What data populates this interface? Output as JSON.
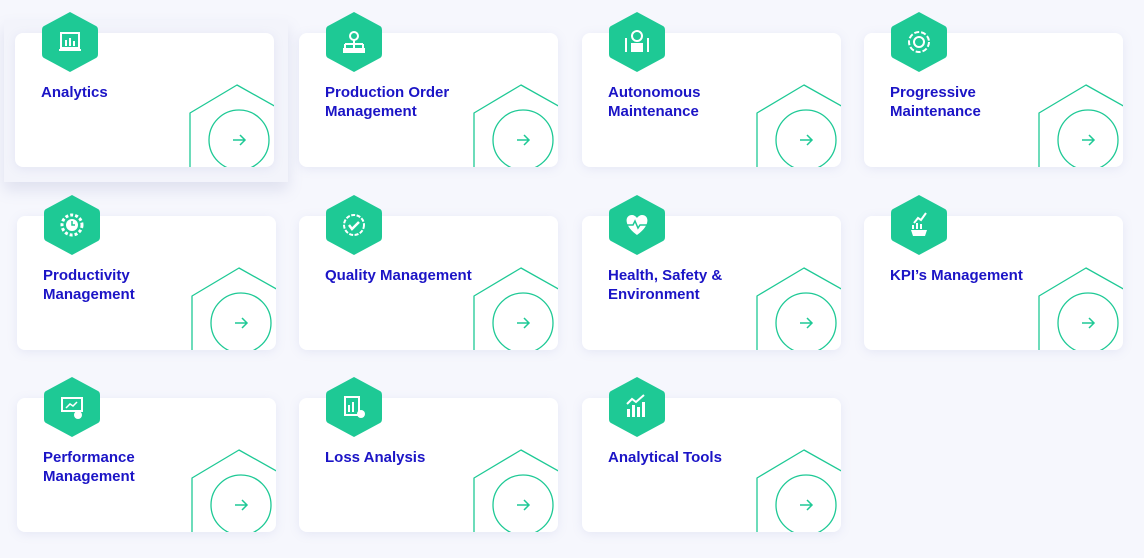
{
  "colors": {
    "accent": "#1ec995",
    "title": "#1b14c6",
    "background": "#f6f7fd"
  },
  "modules": [
    {
      "title": "Analytics",
      "icon": "dashboard-chart-icon"
    },
    {
      "title": "Production Order Management",
      "icon": "production-flow-icon"
    },
    {
      "title": "Autonomous Maintenance",
      "icon": "robot-maintenance-icon"
    },
    {
      "title": "Progressive Maintenance",
      "icon": "gear-cycle-icon"
    },
    {
      "title": "Productivity Management",
      "icon": "gear-clock-icon"
    },
    {
      "title": "Quality Management",
      "icon": "quality-badge-icon"
    },
    {
      "title": "Health, Safety & Environment",
      "icon": "heart-pulse-icon"
    },
    {
      "title": "KPI’s Management",
      "icon": "kpi-gear-chart-icon"
    },
    {
      "title": "Performance Management",
      "icon": "presentation-chart-icon"
    },
    {
      "title": "Loss Analysis",
      "icon": "loss-report-icon"
    },
    {
      "title": "Analytical Tools",
      "icon": "bar-chart-icon"
    }
  ],
  "arrow_icon": "arrow-right-icon"
}
